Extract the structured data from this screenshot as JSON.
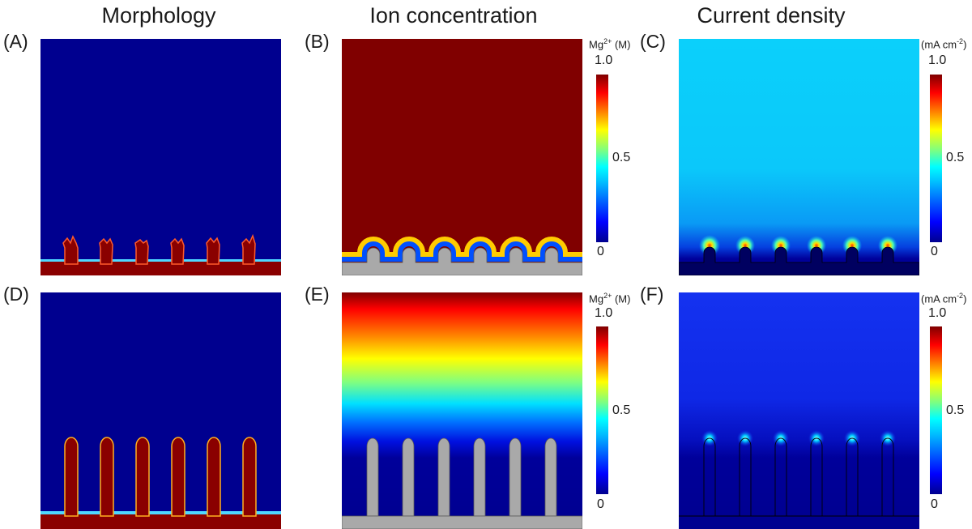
{
  "columns": {
    "morphology": "Morphology",
    "ion_concentration": "Ion concentration",
    "current_density": "Current density"
  },
  "panels": {
    "A": "(A)",
    "B": "(B)",
    "C": "(C)",
    "D": "(D)",
    "E": "(E)",
    "F": "(F)"
  },
  "colorbars": {
    "ion": {
      "unit_prefix": "Mg",
      "unit_sup": "2+",
      "unit_suffix": " (M)"
    },
    "current": {
      "unit_prefix": "(mA cm",
      "unit_sup": "-2",
      "unit_suffix": ")"
    },
    "ticks": {
      "max": "1.0",
      "mid": "0.5",
      "min": "0"
    }
  },
  "colors": {
    "dark_blue": "#00008f",
    "dark_red": "#800000",
    "grey_electrode": "#a9a9a9",
    "light_cyan": "#0bd0fb",
    "mid_blue": "#1432f0"
  },
  "structures": {
    "columns_per_panel": 6
  }
}
